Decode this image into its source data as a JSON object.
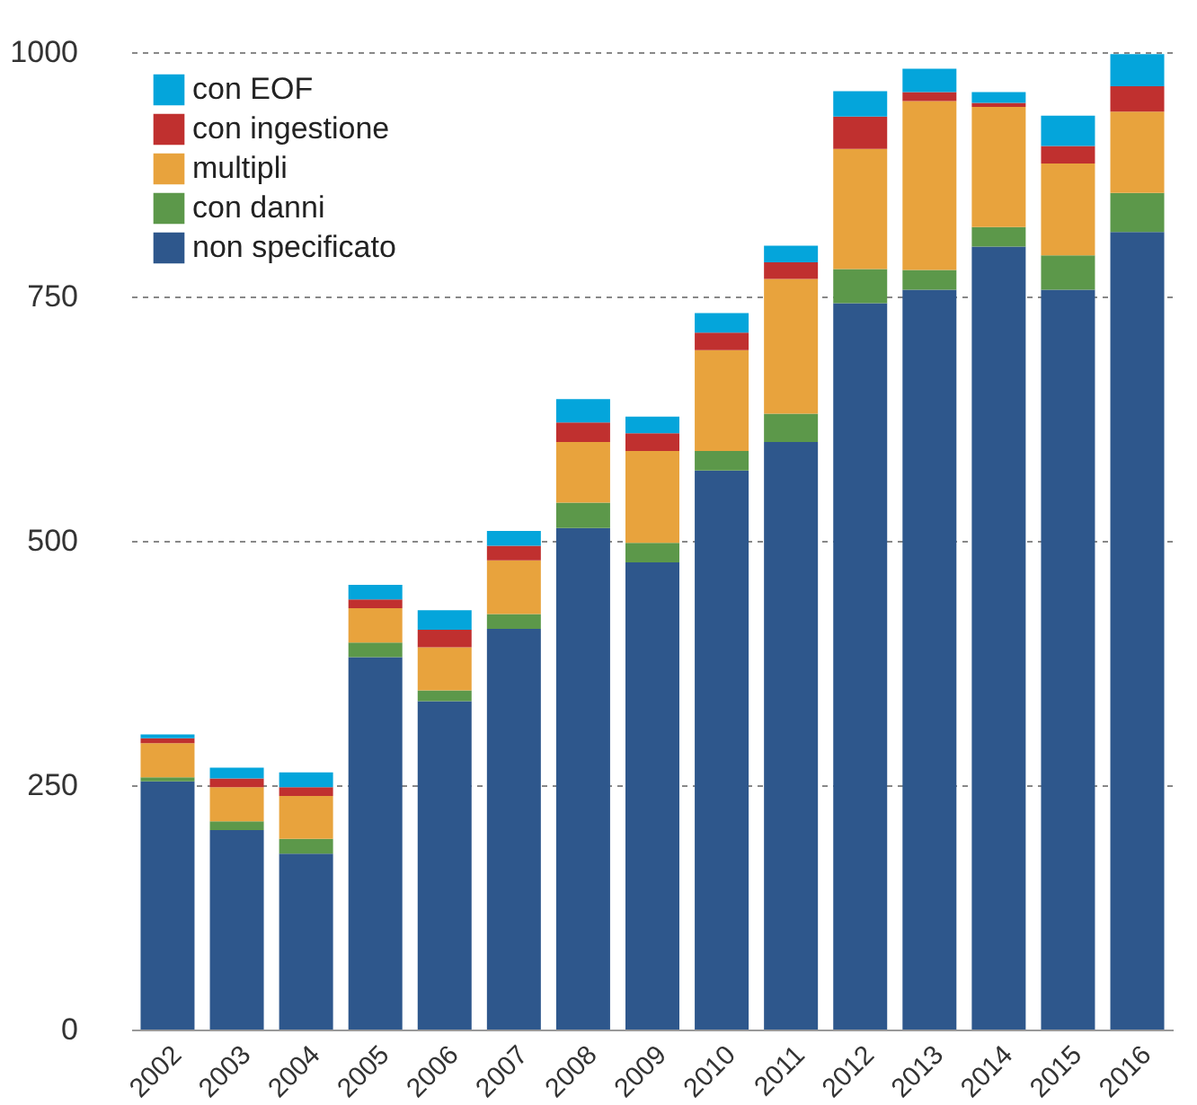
{
  "chart_data": {
    "type": "bar",
    "stacked": true,
    "categories": [
      "2002",
      "2003",
      "2004",
      "2005",
      "2006",
      "2007",
      "2008",
      "2009",
      "2010",
      "2011",
      "2012",
      "2013",
      "2014",
      "2015",
      "2016"
    ],
    "series": [
      {
        "name": "non specificato",
        "color": "#2e578c",
        "values": [
          254,
          204,
          180,
          381,
          336,
          410,
          513,
          478,
          572,
          601,
          743,
          757,
          801,
          757,
          816
        ]
      },
      {
        "name": "con danni",
        "color": "#5c984a",
        "values": [
          4,
          9,
          15,
          15,
          11,
          15,
          26,
          20,
          20,
          29,
          35,
          20,
          20,
          35,
          40
        ]
      },
      {
        "name": "multipli",
        "color": "#e8a33d",
        "values": [
          35,
          35,
          44,
          35,
          44,
          55,
          62,
          94,
          103,
          138,
          123,
          173,
          123,
          94,
          83
        ]
      },
      {
        "name": "con ingestione",
        "color": "#c0302f",
        "values": [
          5,
          9,
          9,
          9,
          18,
          15,
          20,
          18,
          18,
          17,
          33,
          9,
          4,
          18,
          26
        ]
      },
      {
        "name": "con EOF",
        "color": "#04a5db",
        "values": [
          4,
          11,
          15,
          15,
          20,
          15,
          24,
          17,
          20,
          17,
          26,
          24,
          11,
          31,
          33
        ]
      }
    ],
    "ylim": [
      0,
      1000
    ],
    "yticks": [
      0,
      250,
      500,
      750,
      1000
    ],
    "grid": "y",
    "legend": "top left"
  }
}
